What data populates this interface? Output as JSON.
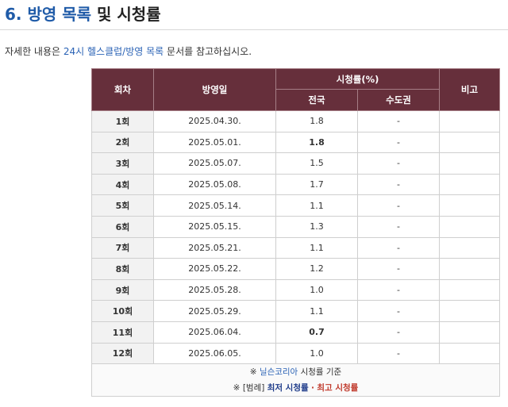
{
  "section": {
    "number": "6.",
    "link_text": "방영 목록",
    "rest_text": "및 시청률"
  },
  "intro": {
    "prefix": "자세한 내용은",
    "link_text": "24시 헬스클럽/방영 목록",
    "suffix": "문서를 참고하십시오."
  },
  "table": {
    "headers": {
      "episode": "회차",
      "air_date": "방영일",
      "ratings": "시청률(%)",
      "nationwide": "전국",
      "capital": "수도권",
      "note": "비고"
    },
    "rows": [
      {
        "episode": "1회",
        "date": "2025.04.30.",
        "nationwide": "1.8",
        "capital": "-",
        "note": "",
        "mark": ""
      },
      {
        "episode": "2회",
        "date": "2025.05.01.",
        "nationwide": "1.8",
        "capital": "-",
        "note": "",
        "mark": "high"
      },
      {
        "episode": "3회",
        "date": "2025.05.07.",
        "nationwide": "1.5",
        "capital": "-",
        "note": "",
        "mark": ""
      },
      {
        "episode": "4회",
        "date": "2025.05.08.",
        "nationwide": "1.7",
        "capital": "-",
        "note": "",
        "mark": ""
      },
      {
        "episode": "5회",
        "date": "2025.05.14.",
        "nationwide": "1.1",
        "capital": "-",
        "note": "",
        "mark": ""
      },
      {
        "episode": "6회",
        "date": "2025.05.15.",
        "nationwide": "1.3",
        "capital": "-",
        "note": "",
        "mark": ""
      },
      {
        "episode": "7회",
        "date": "2025.05.21.",
        "nationwide": "1.1",
        "capital": "-",
        "note": "",
        "mark": ""
      },
      {
        "episode": "8회",
        "date": "2025.05.22.",
        "nationwide": "1.2",
        "capital": "-",
        "note": "",
        "mark": ""
      },
      {
        "episode": "9회",
        "date": "2025.05.28.",
        "nationwide": "1.0",
        "capital": "-",
        "note": "",
        "mark": ""
      },
      {
        "episode": "10회",
        "date": "2025.05.29.",
        "nationwide": "1.1",
        "capital": "-",
        "note": "",
        "mark": ""
      },
      {
        "episode": "11회",
        "date": "2025.06.04.",
        "nationwide": "0.7",
        "capital": "-",
        "note": "",
        "mark": "low"
      },
      {
        "episode": "12회",
        "date": "2025.06.05.",
        "nationwide": "1.0",
        "capital": "-",
        "note": "",
        "mark": ""
      }
    ],
    "legend": {
      "line1_mark": "※",
      "line1_link": "닐슨코리아",
      "line1_suffix": "시청률 기준",
      "line2_mark": "※",
      "line2_label": "[범례]",
      "line2_low": "최저 시청률",
      "line2_sep": "·",
      "line2_high": "최고 시청률"
    }
  },
  "colors": {
    "header_bg": "#662f3b",
    "link": "#2a62b5",
    "highest": "#c0392b",
    "lowest": "#1f3c8a"
  }
}
